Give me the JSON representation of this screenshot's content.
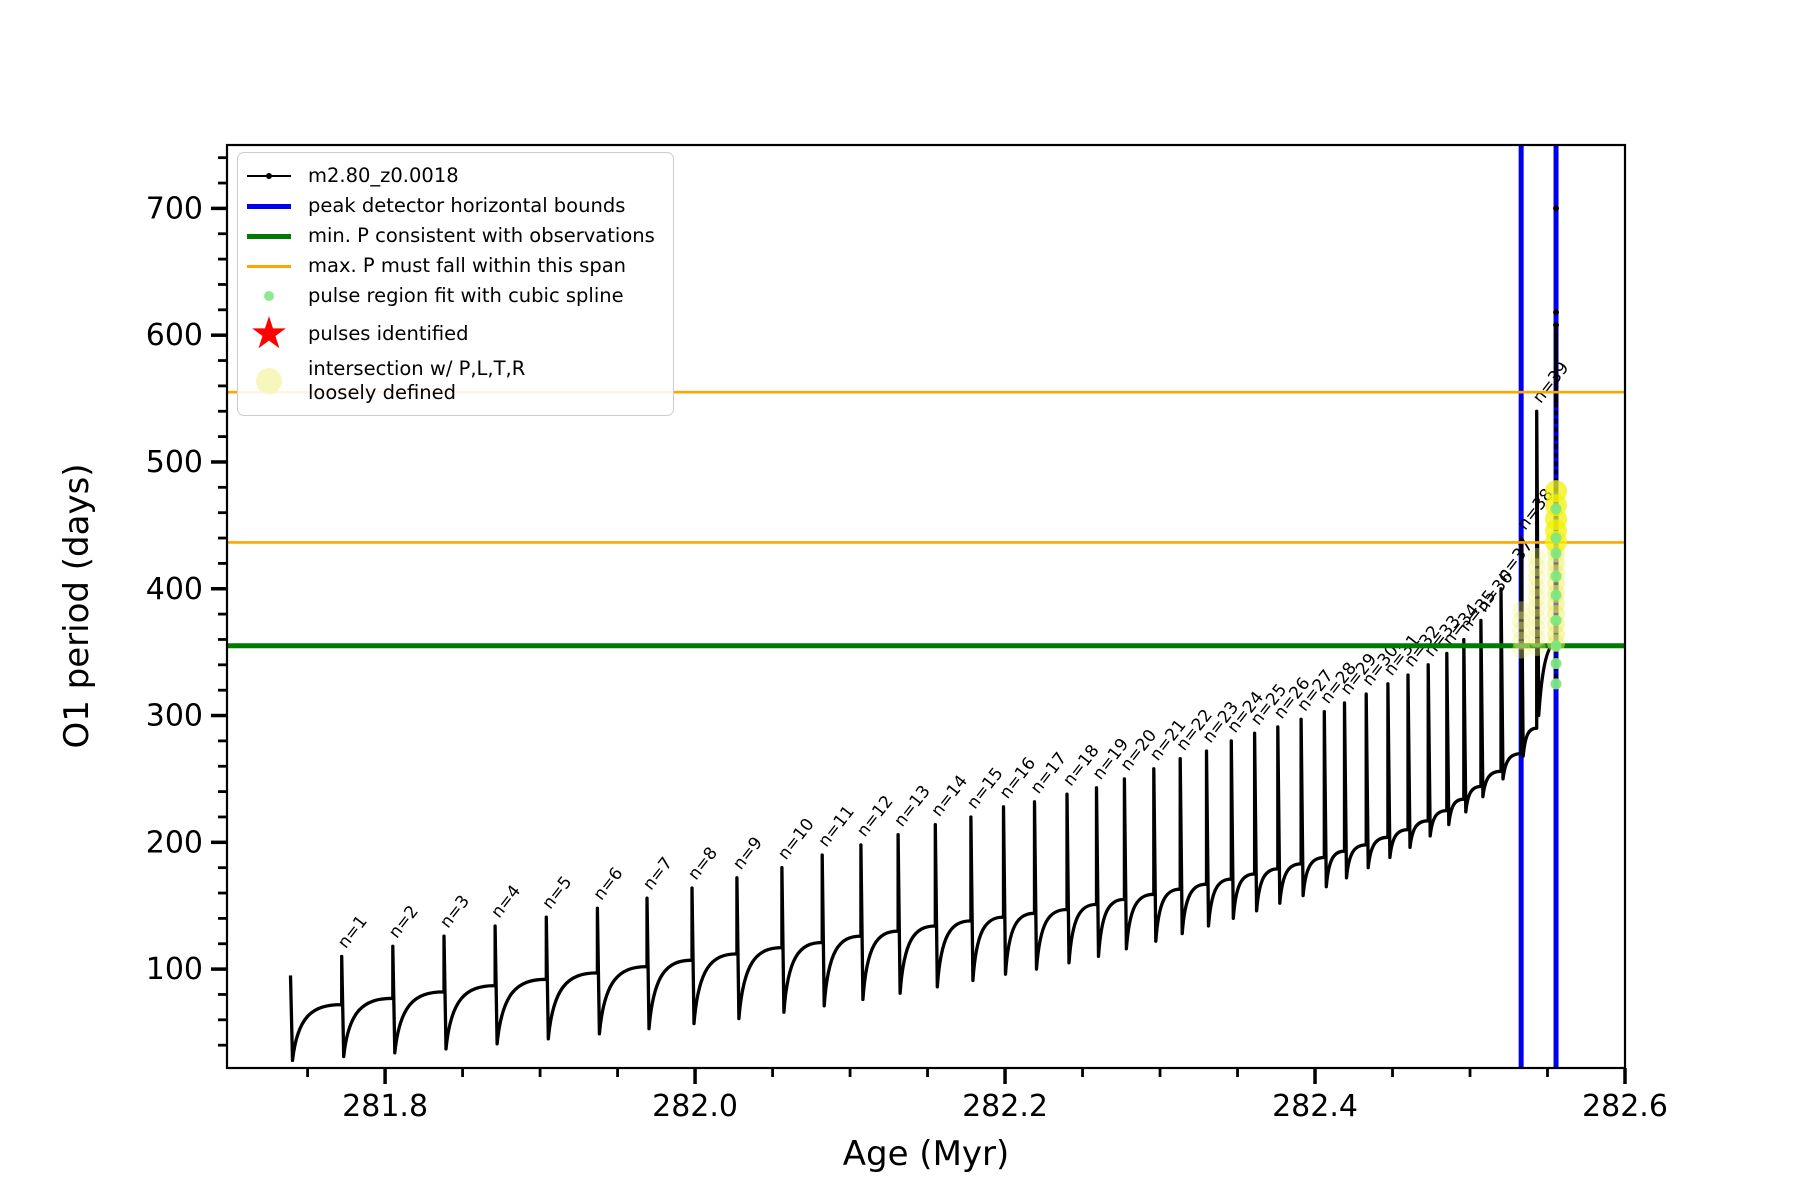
{
  "figure": {
    "background": "#ffffff"
  },
  "axes": {
    "xlabel": "Age (Myr)",
    "ylabel": "O1 period (days)"
  },
  "legend": {
    "items": [
      {
        "type": "line-dot",
        "color": "#000000",
        "label": "m2.80_z0.0018"
      },
      {
        "type": "thick-line",
        "color": "#0000ee",
        "label": "peak detector horizontal bounds"
      },
      {
        "type": "thick-line",
        "color": "#007a00",
        "label": "min. P consistent with observations"
      },
      {
        "type": "thin-line",
        "color": "#ffa500",
        "label": "max. P must fall within this span"
      },
      {
        "type": "dot-small",
        "color": "#90e890",
        "label": "pulse region fit with cubic spline"
      },
      {
        "type": "star",
        "color": "#ff0000",
        "label": "pulses identified"
      },
      {
        "type": "dot-large",
        "color": "#f6f6bd",
        "label": "intersection w/ P,L,T,R\nloosely defined"
      }
    ]
  },
  "chart_data": {
    "type": "line",
    "title": "",
    "xlabel": "Age (Myr)",
    "ylabel": "O1 period (days)",
    "series_label": "m2.80_z0.0018",
    "xlim": [
      281.698,
      282.6
    ],
    "ylim": [
      22,
      750
    ],
    "x_ticks": [
      281.8,
      282.0,
      282.2,
      282.4,
      282.6
    ],
    "x_tick_labels": [
      "281.8",
      "282.0",
      "282.2",
      "282.4",
      "282.6"
    ],
    "y_ticks": [
      100,
      200,
      300,
      400,
      500,
      600,
      700
    ],
    "x_minor_step": 0.05,
    "y_minor_step": 20,
    "grid": false,
    "legend_position": "upper left",
    "hlines": [
      {
        "name": "min-P-line",
        "value": 355,
        "color": "#007a00",
        "width": 5
      },
      {
        "name": "max-P-low",
        "value": 436.5,
        "color": "#ffa500",
        "width": 2.6
      },
      {
        "name": "max-P-high",
        "value": 555,
        "color": "#ffa500",
        "width": 2.6
      }
    ],
    "vlines": [
      {
        "name": "peak-bound-left",
        "age": 282.533,
        "color": "#0000ee",
        "width": 5
      },
      {
        "name": "peak-bound-right",
        "age": 282.5555,
        "color": "#0000ee",
        "width": 5
      }
    ],
    "pulses": [
      {
        "n": 0,
        "label": "",
        "age": 281.739,
        "base": null,
        "peak": 95,
        "min": 28
      },
      {
        "n": 1,
        "label": "n=1",
        "age": 281.772,
        "base": 72,
        "peak": 110,
        "min": 31
      },
      {
        "n": 2,
        "label": "n=2",
        "age": 281.805,
        "base": 77,
        "peak": 118,
        "min": 34
      },
      {
        "n": 3,
        "label": "n=3",
        "age": 281.838,
        "base": 82,
        "peak": 126,
        "min": 37
      },
      {
        "n": 4,
        "label": "n=4",
        "age": 281.871,
        "base": 87,
        "peak": 134,
        "min": 41
      },
      {
        "n": 5,
        "label": "n=5",
        "age": 281.904,
        "base": 92,
        "peak": 141,
        "min": 45
      },
      {
        "n": 6,
        "label": "n=6",
        "age": 281.937,
        "base": 97,
        "peak": 148,
        "min": 49
      },
      {
        "n": 7,
        "label": "n=7",
        "age": 281.969,
        "base": 102,
        "peak": 156,
        "min": 53
      },
      {
        "n": 8,
        "label": "n=8",
        "age": 281.998,
        "base": 107,
        "peak": 164,
        "min": 57
      },
      {
        "n": 9,
        "label": "n=9",
        "age": 282.027,
        "base": 112,
        "peak": 172,
        "min": 61
      },
      {
        "n": 10,
        "label": "n=10",
        "age": 282.056,
        "base": 117,
        "peak": 180,
        "min": 66
      },
      {
        "n": 11,
        "label": "n=11",
        "age": 282.082,
        "base": 121,
        "peak": 190,
        "min": 71
      },
      {
        "n": 12,
        "label": "n=12",
        "age": 282.107,
        "base": 126,
        "peak": 198,
        "min": 76
      },
      {
        "n": 13,
        "label": "n=13",
        "age": 282.131,
        "base": 130,
        "peak": 206,
        "min": 81
      },
      {
        "n": 14,
        "label": "n=14",
        "age": 282.155,
        "base": 134,
        "peak": 214,
        "min": 86
      },
      {
        "n": 15,
        "label": "n=15",
        "age": 282.178,
        "base": 138,
        "peak": 220,
        "min": 91
      },
      {
        "n": 16,
        "label": "n=16",
        "age": 282.199,
        "base": 141,
        "peak": 228,
        "min": 96
      },
      {
        "n": 17,
        "label": "n=17",
        "age": 282.219,
        "base": 144,
        "peak": 232,
        "min": 100
      },
      {
        "n": 18,
        "label": "n=18",
        "age": 282.24,
        "base": 147,
        "peak": 238,
        "min": 105
      },
      {
        "n": 19,
        "label": "n=19",
        "age": 282.259,
        "base": 151,
        "peak": 243,
        "min": 110
      },
      {
        "n": 20,
        "label": "n=20",
        "age": 282.277,
        "base": 155,
        "peak": 250,
        "min": 116
      },
      {
        "n": 21,
        "label": "n=21",
        "age": 282.296,
        "base": 159,
        "peak": 258,
        "min": 122
      },
      {
        "n": 22,
        "label": "n=22",
        "age": 282.313,
        "base": 163,
        "peak": 266,
        "min": 128
      },
      {
        "n": 23,
        "label": "n=23",
        "age": 282.33,
        "base": 167,
        "peak": 272,
        "min": 134
      },
      {
        "n": 24,
        "label": "n=24",
        "age": 282.346,
        "base": 171,
        "peak": 280,
        "min": 140
      },
      {
        "n": 25,
        "label": "n=25",
        "age": 282.361,
        "base": 175,
        "peak": 286,
        "min": 146
      },
      {
        "n": 26,
        "label": "n=26",
        "age": 282.376,
        "base": 179,
        "peak": 291,
        "min": 152
      },
      {
        "n": 27,
        "label": "n=27",
        "age": 282.391,
        "base": 183,
        "peak": 297,
        "min": 158
      },
      {
        "n": 28,
        "label": "n=28",
        "age": 282.406,
        "base": 188,
        "peak": 303,
        "min": 165
      },
      {
        "n": 29,
        "label": "n=29",
        "age": 282.419,
        "base": 193,
        "peak": 310,
        "min": 172
      },
      {
        "n": 30,
        "label": "n=30",
        "age": 282.433,
        "base": 198,
        "peak": 317,
        "min": 180
      },
      {
        "n": 31,
        "label": "n=31",
        "age": 282.447,
        "base": 204,
        "peak": 325,
        "min": 188
      },
      {
        "n": 32,
        "label": "n=32",
        "age": 282.46,
        "base": 210,
        "peak": 332,
        "min": 196
      },
      {
        "n": 33,
        "label": "n=33",
        "age": 282.473,
        "base": 217,
        "peak": 340,
        "min": 205
      },
      {
        "n": 34,
        "label": "n=34",
        "age": 282.485,
        "base": 225,
        "peak": 349,
        "min": 214
      },
      {
        "n": 35,
        "label": "n=35",
        "age": 282.496,
        "base": 234,
        "peak": 360,
        "min": 224
      },
      {
        "n": 36,
        "label": "n=36",
        "age": 282.507,
        "base": 244,
        "peak": 375,
        "min": 236
      },
      {
        "n": 37,
        "label": "n=37",
        "age": 282.52,
        "base": 256,
        "peak": 400,
        "min": 250
      },
      {
        "n": 38,
        "label": "n=38",
        "age": 282.533,
        "base": 270,
        "peak": 440,
        "min": 268
      },
      {
        "n": 39,
        "label": "n=39",
        "age": 282.543,
        "base": 290,
        "peak": 540,
        "min": 300
      }
    ],
    "end_track": {
      "age": 282.5555,
      "rise_to": 357,
      "dot_column": [
        330,
        605
      ],
      "solid_segment": [
        543,
        605
      ],
      "isolated_dots": [
        608,
        618,
        700
      ]
    },
    "markers": {
      "spline_dots": {
        "age": 282.5555,
        "color": "#7fe87f",
        "radius": 5.5,
        "opacity": 0.95,
        "values": [
          325,
          341,
          355,
          375,
          395,
          410,
          428,
          440,
          463
        ]
      },
      "intersections_bright": {
        "age": 282.5555,
        "color": "#f2f20a",
        "radius": 11,
        "opacity": 0.75,
        "values": [
          477,
          466,
          455,
          446,
          437
        ]
      },
      "intersections_mid": {
        "age": 282.5555,
        "color": "#f0f060",
        "radius": 9,
        "opacity": 0.5,
        "values": [
          428,
          420,
          412,
          404,
          396,
          388,
          380,
          372,
          364,
          357
        ]
      },
      "intersections_col_a": {
        "age": 282.543,
        "color": "#f2f280",
        "radius": 9,
        "opacity": 0.35,
        "values": [
          425,
          417,
          409,
          401,
          393,
          385,
          377,
          369,
          361,
          354
        ]
      },
      "intersections_col_b": {
        "age": 282.533,
        "color": "#f2f280",
        "radius": 9,
        "opacity": 0.35,
        "values": [
          383,
          375,
          367,
          359,
          352
        ]
      }
    }
  }
}
